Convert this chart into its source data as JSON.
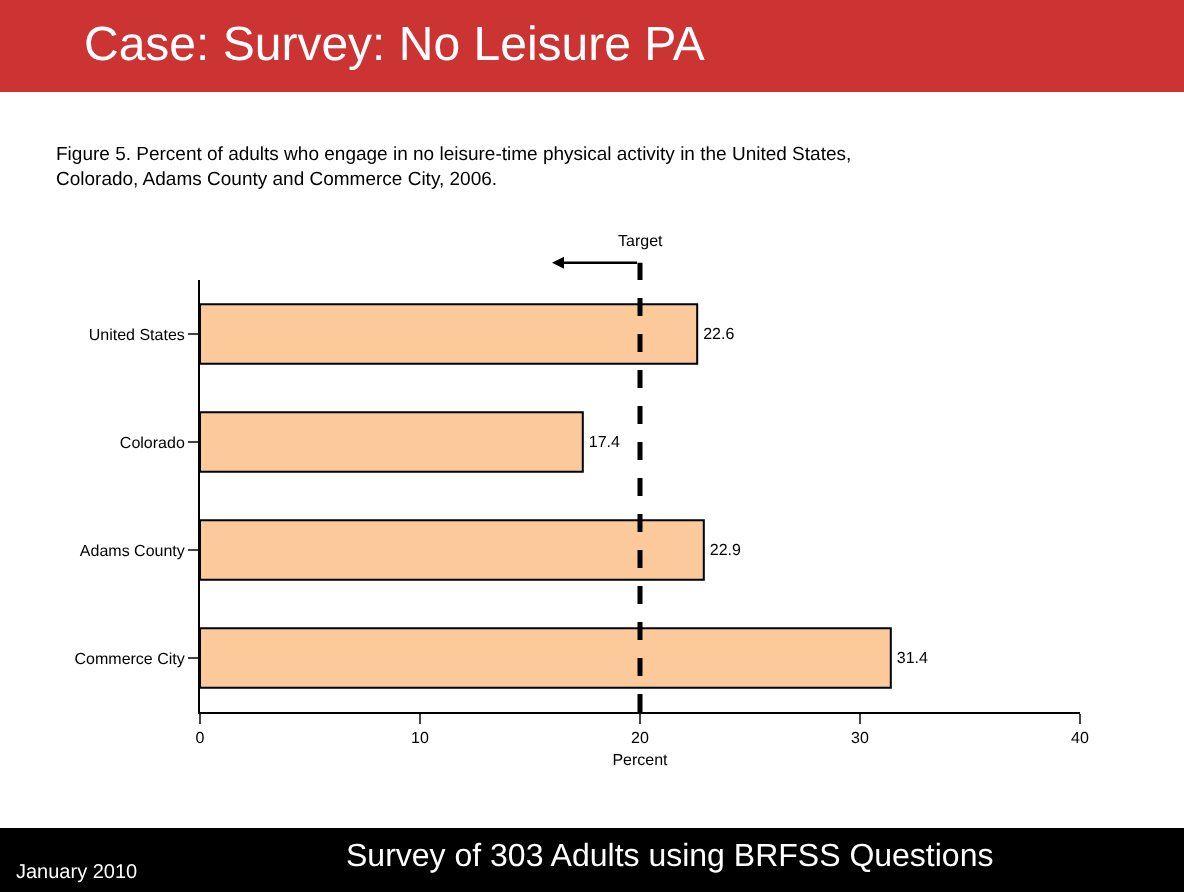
{
  "chart_data": {
    "type": "bar",
    "orientation": "horizontal",
    "title": "Case: Survey: No Leisure PA",
    "subtitle": "Figure 5. Percent of adults who engage in no leisure-time physical activity in the United States, Colorado, Adams County and Commerce City, 2006.",
    "categories": [
      "United States",
      "Colorado",
      "Adams County",
      "Commerce City"
    ],
    "values": [
      22.6,
      17.4,
      22.9,
      31.4
    ],
    "color": "#fbc99a",
    "xlim": [
      0,
      40
    ],
    "xticks": [
      0,
      10,
      20,
      30,
      40
    ],
    "xlabel": "Percent",
    "data_labels": true,
    "legend": false,
    "ref_lines": [
      {
        "axis": "x",
        "value": 20,
        "label": "Target",
        "line_style": "dashed",
        "color": "#000000"
      }
    ],
    "annotations": [
      "January 2010",
      "Survey of 303 Adults using BRFSS Questions"
    ]
  }
}
